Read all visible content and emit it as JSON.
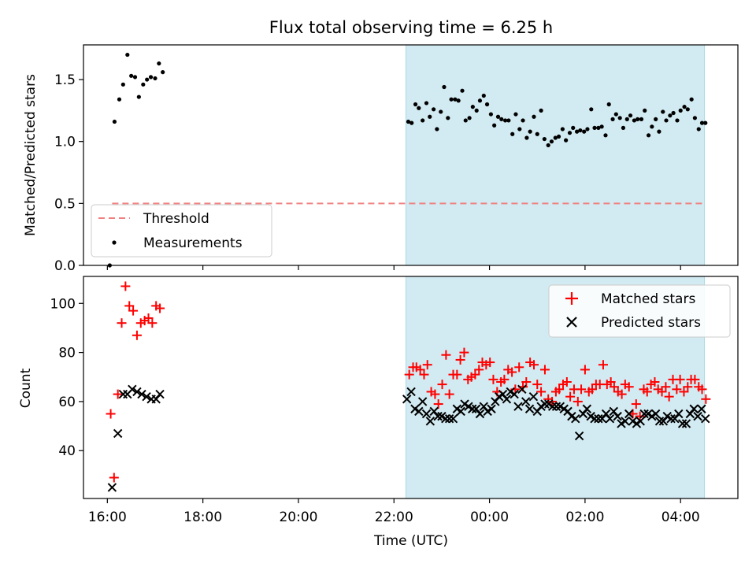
{
  "chart_data": [
    {
      "type": "scatter",
      "title": "Flux total observing time = 6.25 h",
      "xlabel": "",
      "ylabel": "Matched/Predicted stars",
      "xlim": [
        15.5,
        29.2
      ],
      "ylim": [
        0,
        1.78
      ],
      "y_ticks": [
        0.0,
        0.5,
        1.0,
        1.5
      ],
      "y_tick_labels": [
        "0.0",
        "0.5",
        "1.0",
        "1.5"
      ],
      "shaded_span": [
        22.25,
        28.5
      ],
      "shade_color": "#add8e6",
      "threshold": {
        "name": "Threshold",
        "value": 0.5,
        "x_range": [
          16.1,
          28.5
        ],
        "color": "#f08080"
      },
      "legend": {
        "position": "lower-left",
        "entries": [
          "Threshold",
          "Measurements"
        ]
      },
      "series": [
        {
          "name": "Measurements",
          "marker": "dot",
          "color": "#000000",
          "x": [
            16.05,
            16.15,
            16.25,
            16.33,
            16.42,
            16.5,
            16.58,
            16.66,
            16.75,
            16.83,
            16.91,
            17.0,
            17.08,
            17.16,
            22.3,
            22.37,
            22.45,
            22.52,
            22.6,
            22.68,
            22.75,
            22.83,
            22.9,
            22.98,
            23.05,
            23.13,
            23.2,
            23.28,
            23.35,
            23.43,
            23.5,
            23.58,
            23.65,
            23.73,
            23.8,
            23.88,
            23.95,
            24.03,
            24.1,
            24.18,
            24.25,
            24.33,
            24.4,
            24.48,
            24.55,
            24.63,
            24.7,
            24.78,
            24.85,
            24.93,
            25.0,
            25.08,
            25.15,
            25.23,
            25.3,
            25.38,
            25.45,
            25.53,
            25.6,
            25.68,
            25.75,
            25.83,
            25.9,
            25.98,
            26.05,
            26.13,
            26.2,
            26.28,
            26.35,
            26.43,
            26.5,
            26.58,
            26.65,
            26.73,
            26.8,
            26.88,
            26.95,
            27.03,
            27.1,
            27.18,
            27.25,
            27.33,
            27.4,
            27.48,
            27.55,
            27.63,
            27.7,
            27.78,
            27.85,
            27.93,
            28.0,
            28.08,
            28.15,
            28.23,
            28.3,
            28.38,
            28.45,
            28.52
          ],
          "y": [
            0.0,
            1.16,
            1.34,
            1.46,
            1.7,
            1.53,
            1.52,
            1.36,
            1.46,
            1.5,
            1.52,
            1.51,
            1.63,
            1.56,
            1.16,
            1.15,
            1.3,
            1.27,
            1.17,
            1.31,
            1.2,
            1.26,
            1.1,
            1.24,
            1.44,
            1.19,
            1.34,
            1.34,
            1.33,
            1.41,
            1.17,
            1.19,
            1.28,
            1.25,
            1.33,
            1.37,
            1.3,
            1.22,
            1.13,
            1.2,
            1.18,
            1.17,
            1.17,
            1.06,
            1.22,
            1.1,
            1.17,
            1.03,
            1.08,
            1.2,
            1.06,
            1.25,
            1.02,
            0.97,
            1.0,
            1.03,
            1.04,
            1.1,
            1.01,
            1.07,
            1.11,
            1.08,
            1.09,
            1.08,
            1.1,
            1.26,
            1.11,
            1.11,
            1.12,
            1.05,
            1.3,
            1.18,
            1.22,
            1.19,
            1.11,
            1.18,
            1.21,
            1.17,
            1.18,
            1.18,
            1.25,
            1.05,
            1.12,
            1.18,
            1.08,
            1.24,
            1.17,
            1.21,
            1.23,
            1.17,
            1.25,
            1.28,
            1.26,
            1.34,
            1.19,
            1.1,
            1.15,
            1.15
          ]
        }
      ]
    },
    {
      "type": "scatter",
      "title": "",
      "xlabel": "Time (UTC)",
      "ylabel": "Count",
      "xlim": [
        15.5,
        29.2
      ],
      "ylim": [
        20.5,
        111
      ],
      "y_ticks": [
        40,
        60,
        80,
        100
      ],
      "y_tick_labels": [
        "40",
        "60",
        "80",
        "100"
      ],
      "x_ticks": [
        16,
        18,
        20,
        22,
        24,
        26,
        28
      ],
      "x_tick_labels": [
        "16:00",
        "18:00",
        "20:00",
        "22:00",
        "00:00",
        "02:00",
        "04:00"
      ],
      "shaded_span": [
        22.25,
        28.5
      ],
      "shade_color": "#add8e6",
      "legend": {
        "position": "upper-right",
        "entries": [
          "Matched stars",
          "Predicted stars"
        ]
      },
      "series": [
        {
          "name": "Matched stars",
          "marker": "plus",
          "color": "#ff0000",
          "x": [
            16.07,
            16.14,
            16.22,
            16.3,
            16.38,
            16.46,
            16.54,
            16.62,
            16.7,
            16.78,
            16.86,
            16.94,
            17.02,
            17.1,
            22.32,
            22.4,
            22.47,
            22.55,
            22.63,
            22.7,
            22.78,
            22.86,
            22.93,
            23.01,
            23.09,
            23.16,
            23.24,
            23.32,
            23.39,
            23.47,
            23.55,
            23.62,
            23.7,
            23.78,
            23.85,
            23.93,
            24.01,
            24.08,
            24.16,
            24.24,
            24.31,
            24.39,
            24.47,
            24.54,
            24.62,
            24.7,
            24.77,
            24.85,
            24.93,
            25.0,
            25.08,
            25.16,
            25.23,
            25.31,
            25.39,
            25.46,
            25.54,
            25.62,
            25.69,
            25.77,
            25.85,
            25.92,
            26.0,
            26.08,
            26.15,
            26.23,
            26.31,
            26.38,
            26.46,
            26.54,
            26.61,
            26.69,
            26.77,
            26.84,
            26.92,
            27.0,
            27.07,
            27.15,
            27.23,
            27.3,
            27.38,
            27.46,
            27.53,
            27.61,
            27.69,
            27.76,
            27.84,
            27.92,
            27.99,
            28.07,
            28.15,
            28.22,
            28.3,
            28.38,
            28.45,
            28.53
          ],
          "y": [
            55,
            29,
            63,
            92,
            107,
            99,
            97,
            87,
            92,
            93,
            94,
            92,
            99,
            98,
            71,
            74,
            74,
            73,
            71,
            75,
            64,
            63,
            59,
            67,
            79,
            63,
            71,
            71,
            77,
            80,
            69,
            70,
            71,
            73,
            76,
            75,
            76,
            69,
            64,
            68,
            69,
            73,
            72,
            65,
            74,
            66,
            68,
            76,
            75,
            67,
            64,
            73,
            61,
            60,
            64,
            65,
            67,
            68,
            62,
            65,
            60,
            65,
            73,
            64,
            65,
            67,
            67,
            75,
            67,
            68,
            66,
            64,
            63,
            67,
            66,
            55,
            59,
            54,
            65,
            64,
            67,
            68,
            65,
            64,
            66,
            62,
            69,
            65,
            69,
            64,
            66,
            69,
            69,
            66,
            65,
            61
          ]
        },
        {
          "name": "Predicted stars",
          "marker": "x",
          "color": "#000000",
          "x": [
            16.1,
            16.22,
            16.33,
            16.42,
            16.52,
            16.62,
            16.72,
            16.82,
            16.92,
            17.02,
            17.1,
            22.27,
            22.36,
            22.44,
            22.52,
            22.6,
            22.68,
            22.76,
            22.84,
            22.92,
            23.0,
            23.08,
            23.16,
            23.24,
            23.32,
            23.4,
            23.48,
            23.56,
            23.64,
            23.72,
            23.8,
            23.88,
            23.96,
            24.04,
            24.12,
            24.2,
            24.28,
            24.36,
            24.44,
            24.52,
            24.6,
            24.68,
            24.76,
            24.84,
            24.92,
            25.0,
            25.08,
            25.16,
            25.24,
            25.32,
            25.4,
            25.48,
            25.56,
            25.64,
            25.72,
            25.8,
            25.88,
            25.96,
            26.04,
            26.12,
            26.2,
            26.28,
            26.36,
            26.44,
            26.52,
            26.6,
            26.68,
            26.76,
            26.84,
            26.92,
            27.0,
            27.08,
            27.16,
            27.24,
            27.32,
            27.4,
            27.48,
            27.56,
            27.64,
            27.72,
            27.8,
            27.88,
            27.96,
            28.04,
            28.12,
            28.2,
            28.28,
            28.36,
            28.44,
            28.52
          ],
          "y": [
            25,
            47,
            63,
            63,
            65,
            64,
            63,
            62,
            61,
            61,
            63,
            61,
            64,
            57,
            56,
            60,
            55,
            52,
            56,
            54,
            54,
            53,
            53,
            53,
            57,
            56,
            59,
            58,
            57,
            57,
            55,
            58,
            56,
            57,
            60,
            62,
            63,
            61,
            64,
            63,
            58,
            65,
            60,
            57,
            62,
            56,
            58,
            59,
            59,
            58,
            58,
            58,
            57,
            56,
            54,
            53,
            46,
            55,
            57,
            54,
            53,
            53,
            53,
            55,
            53,
            56,
            54,
            51,
            52,
            55,
            52,
            51,
            52,
            55,
            55,
            54,
            55,
            52,
            52,
            54,
            53,
            53,
            55,
            51,
            51,
            55,
            57,
            54,
            57,
            53
          ]
        }
      ]
    }
  ]
}
